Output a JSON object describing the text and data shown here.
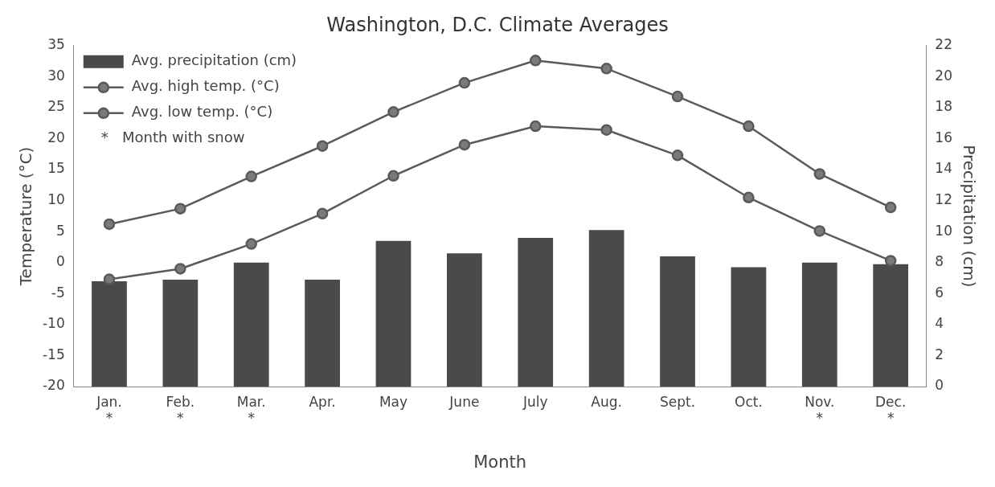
{
  "chart_data": {
    "type": "bar",
    "title": "Washington, D.C. Climate Averages",
    "xlabel": "Month",
    "ylabel": "Temperature (°C)",
    "y2label": "Precipitation (cm)",
    "categories": [
      "Jan.\n*",
      "Feb.\n*",
      "Mar.\n*",
      "Apr.",
      "May",
      "June",
      "July",
      "Aug.",
      "Sept.",
      "Oct.",
      "Nov.\n*",
      "Dec.\n*"
    ],
    "series": [
      {
        "name": "Avg. precipitation (cm)",
        "axis": "y2",
        "color": "#4a4a4a",
        "values": [
          6.8,
          6.9,
          8.0,
          6.9,
          9.4,
          8.6,
          9.6,
          10.1,
          8.4,
          7.7,
          8.0,
          7.9
        ]
      },
      {
        "name": "Avg. high temp. (°C)",
        "type": "line",
        "axis": "y",
        "color": "#5a5a5a",
        "values": [
          6.2,
          8.7,
          13.9,
          18.8,
          24.3,
          29,
          32.6,
          31.3,
          26.8,
          22,
          14.3,
          8.9
        ]
      },
      {
        "name": "Avg. low temp. (°C)",
        "type": "line",
        "axis": "y",
        "color": "#5a5a5a",
        "values": [
          -2.7,
          -1,
          3,
          7.9,
          14,
          19,
          22,
          21.4,
          17.3,
          10.5,
          5.1,
          0.3
        ]
      }
    ],
    "ylim": [
      -20,
      35
    ],
    "yticks": [
      -20,
      -15,
      -10,
      -5,
      0,
      5,
      10,
      15,
      20,
      25,
      30,
      35
    ],
    "y2lim": [
      0,
      22
    ],
    "y2ticks": [
      0,
      2,
      4,
      6,
      8,
      10,
      12,
      14,
      16,
      18,
      20,
      22
    ],
    "grid": false,
    "legend": "top left",
    "marker": "circle",
    "annotations": [
      "*   Month with snow"
    ]
  }
}
